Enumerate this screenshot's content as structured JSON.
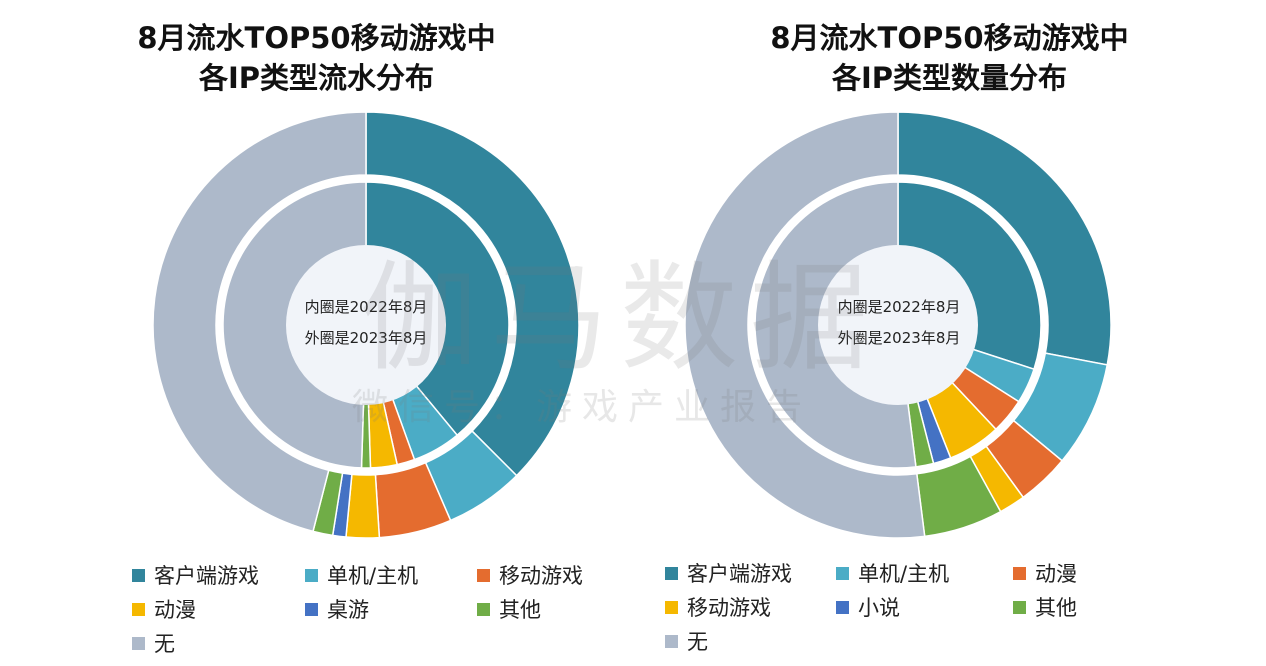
{
  "watermark": {
    "brand": "伽马数据",
    "subtitle": "微信号：游戏产业报告"
  },
  "charts": [
    {
      "title_line1": "8月流水TOP50移动游戏中",
      "title_line2": "各IP类型流水分布",
      "center_line1": "内圈是2022年8月",
      "center_line2": "外圈是2023年8月",
      "legend": [
        "客户端游戏",
        "单机/主机",
        "移动游戏",
        "动漫",
        "桌游",
        "其他",
        "无"
      ]
    },
    {
      "title_line1": "8月流水TOP50移动游戏中",
      "title_line2": "各IP类型数量分布",
      "center_line1": "内圈是2022年8月",
      "center_line2": "外圈是2023年8月",
      "legend": [
        "客户端游戏",
        "单机/主机",
        "动漫",
        "移动游戏",
        "小说",
        "其他",
        "无"
      ]
    }
  ],
  "chart_data": [
    {
      "type": "donut",
      "title": "8月流水TOP50移动游戏中各IP类型流水分布",
      "categories": [
        "客户端游戏",
        "单机/主机",
        "移动游戏",
        "动漫",
        "桌游",
        "其他",
        "无"
      ],
      "colors": [
        "#31859c",
        "#4bacc6",
        "#e46c2f",
        "#f5b800",
        "#4472c4",
        "#70ad47",
        "#adb9ca"
      ],
      "series": [
        {
          "name": "外圈是2023年8月",
          "values": [
            37.5,
            6.0,
            5.5,
            2.5,
            1.0,
            1.5,
            46.0
          ]
        },
        {
          "name": "内圈是2022年8月",
          "values": [
            39.0,
            5.5,
            2.0,
            3.0,
            0,
            1.0,
            49.5
          ]
        }
      ]
    },
    {
      "type": "donut",
      "title": "8月流水TOP50移动游戏中各IP类型数量分布",
      "categories": [
        "客户端游戏",
        "单机/主机",
        "动漫",
        "移动游戏",
        "小说",
        "其他",
        "无"
      ],
      "colors": [
        "#31859c",
        "#4bacc6",
        "#e46c2f",
        "#f5b800",
        "#4472c4",
        "#70ad47",
        "#adb9ca"
      ],
      "series": [
        {
          "name": "外圈是2023年8月",
          "values": [
            28.0,
            8.0,
            4.0,
            2.0,
            0,
            6.0,
            52.0
          ]
        },
        {
          "name": "内圈是2022年8月",
          "values": [
            30.0,
            4.0,
            4.0,
            6.0,
            2.0,
            2.0,
            52.0
          ]
        }
      ]
    }
  ]
}
